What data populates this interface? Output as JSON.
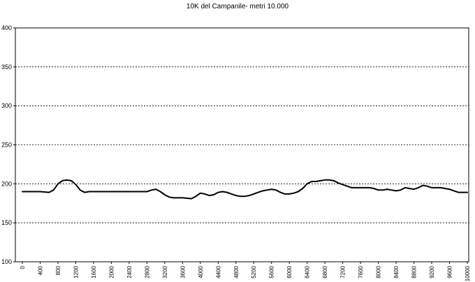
{
  "chart_data": {
    "type": "line",
    "title": "10K del Campanile- metri 10.000",
    "xlabel": "",
    "ylabel": "",
    "xlim": [
      0,
      10000
    ],
    "ylim": [
      100,
      400
    ],
    "yticks": [
      100,
      150,
      200,
      250,
      300,
      350,
      400
    ],
    "xticks": [
      0,
      400,
      800,
      1200,
      1600,
      2000,
      2400,
      2800,
      3200,
      3600,
      4000,
      4400,
      4800,
      5200,
      5600,
      6000,
      6400,
      6800,
      7200,
      7600,
      8000,
      8400,
      8800,
      9200,
      9600,
      10000
    ],
    "grid": "horizontal-dashed",
    "series": [
      {
        "color": "#000000",
        "x": [
          0,
          200,
          400,
          600,
          700,
          800,
          900,
          1000,
          1100,
          1200,
          1300,
          1400,
          1500,
          1600,
          1800,
          2000,
          2200,
          2400,
          2600,
          2800,
          2900,
          3000,
          3100,
          3200,
          3300,
          3400,
          3600,
          3800,
          3900,
          4000,
          4100,
          4200,
          4300,
          4400,
          4500,
          4600,
          4700,
          4800,
          4900,
          5000,
          5100,
          5200,
          5300,
          5400,
          5500,
          5600,
          5700,
          5800,
          5900,
          6000,
          6100,
          6200,
          6300,
          6400,
          6500,
          6600,
          6700,
          6800,
          6900,
          7000,
          7100,
          7200,
          7300,
          7400,
          7600,
          7800,
          7900,
          8000,
          8100,
          8200,
          8300,
          8400,
          8500,
          8600,
          8700,
          8800,
          8900,
          9000,
          9100,
          9200,
          9300,
          9400,
          9500,
          9600,
          9700,
          9800,
          10000
        ],
        "y": [
          190,
          190,
          190,
          189,
          192,
          200,
          204,
          205,
          204,
          199,
          192,
          189,
          190,
          190,
          190,
          190,
          190,
          190,
          190,
          190,
          192,
          193,
          190,
          186,
          183,
          182,
          182,
          181,
          184,
          188,
          187,
          185,
          186,
          189,
          190,
          189,
          187,
          185,
          184,
          184,
          185,
          187,
          189,
          191,
          192,
          193,
          192,
          189,
          187,
          187,
          188,
          190,
          194,
          200,
          203,
          203,
          204,
          205,
          205,
          204,
          201,
          199,
          197,
          195,
          195,
          195,
          194,
          192,
          192,
          193,
          192,
          191,
          192,
          195,
          194,
          193,
          195,
          198,
          197,
          195,
          195,
          195,
          194,
          193,
          191,
          189,
          189
        ]
      }
    ]
  }
}
